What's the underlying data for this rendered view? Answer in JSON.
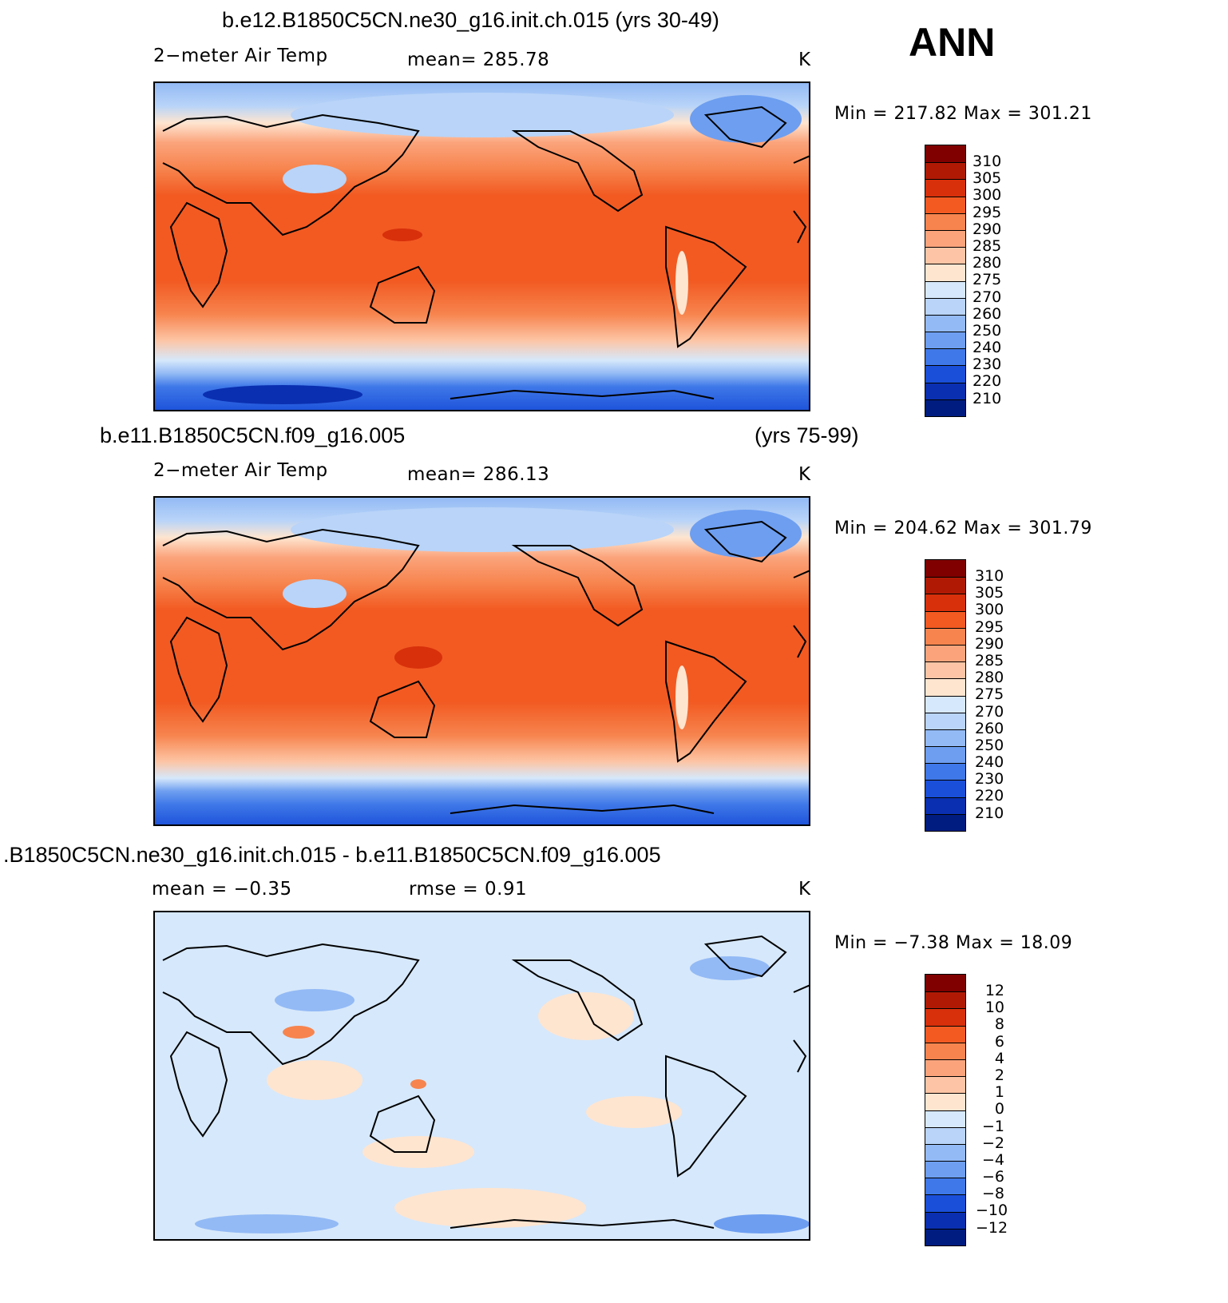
{
  "season": "ANN",
  "units": "K",
  "panels": [
    {
      "title": "b.e12.B1850C5CN.ne30_g16.init.ch.015 (yrs 30-49)",
      "title_right": "",
      "variable": "2−meter Air Temp",
      "stat_left": "mean=  285.78",
      "stat_right": "",
      "units": "K",
      "minmax": "Min  =  217.82  Max  =  301.21",
      "colorbar_labels": [
        "310",
        "305",
        "300",
        "295",
        "290",
        "285",
        "280",
        "275",
        "270",
        "260",
        "250",
        "240",
        "230",
        "220",
        "210"
      ]
    },
    {
      "title": "b.e11.B1850C5CN.f09_g16.005",
      "title_right": "(yrs 75-99)",
      "variable": "2−meter Air Temp",
      "stat_left": "mean=  286.13",
      "stat_right": "",
      "units": "K",
      "minmax": "Min  =  204.62  Max  =  301.79",
      "colorbar_labels": [
        "310",
        "305",
        "300",
        "295",
        "290",
        "285",
        "280",
        "275",
        "270",
        "260",
        "250",
        "240",
        "230",
        "220",
        "210"
      ]
    },
    {
      "title": ".B1850C5CN.ne30_g16.init.ch.015 - b.e11.B1850C5CN.f09_g16.005",
      "title_right": "",
      "variable": "mean  =     −0.35",
      "stat_left": "rmse  =     0.91",
      "stat_right": "",
      "units": "K",
      "minmax": "Min  =     −7.38  Max  =    18.09",
      "colorbar_labels": [
        "12",
        "10",
        "8",
        "6",
        "4",
        "2",
        "1",
        "0",
        "−1",
        "−2",
        "−4",
        "−6",
        "−8",
        "−10",
        "−12"
      ]
    }
  ],
  "colors": {
    "abs_scale": [
      "#800000",
      "#b01a05",
      "#d8300b",
      "#f25a22",
      "#f7844e",
      "#fba47c",
      "#fdc5a5",
      "#fee5d0",
      "#d6e8fb",
      "#b9d4f8",
      "#93baf5",
      "#6d9ef0",
      "#3f78e8",
      "#1a4fd9",
      "#0a2fb0",
      "#001c80"
    ],
    "diff_scale": [
      "#800000",
      "#b01a05",
      "#d8300b",
      "#f25a22",
      "#f7844e",
      "#fba47c",
      "#fdc5a5",
      "#fee5d0",
      "#d6e8fb",
      "#b9d4f8",
      "#93baf5",
      "#6d9ef0",
      "#3f78e8",
      "#1a4fd9",
      "#0a2fb0",
      "#001c80"
    ]
  }
}
